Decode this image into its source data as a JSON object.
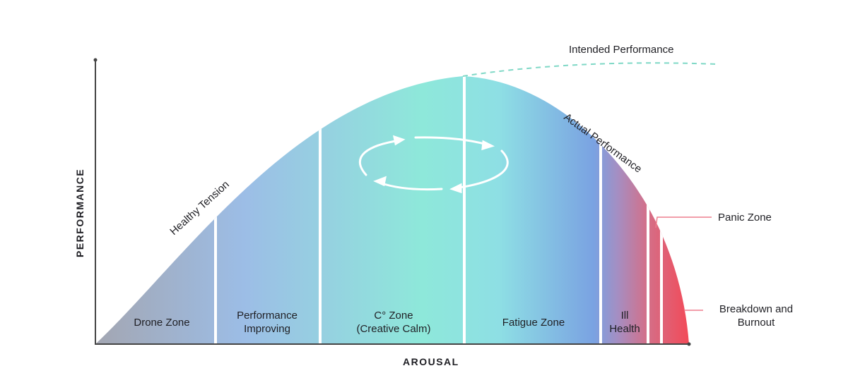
{
  "axes": {
    "x_label": "AROUSAL",
    "y_label": "PERFORMANCE"
  },
  "curves": {
    "intended": "Intended Performance",
    "actual": "Actual Performance",
    "healthy": "Healthy Tension"
  },
  "zones": [
    {
      "line1": "Drone Zone",
      "line2": ""
    },
    {
      "line1": "Performance",
      "line2": "Improving"
    },
    {
      "line1": "C° Zone",
      "line2": "(Creative Calm)"
    },
    {
      "line1": "Fatigue Zone",
      "line2": ""
    },
    {
      "line1": "Ill",
      "line2": "Health"
    }
  ],
  "callouts": {
    "panic": "Panic Zone",
    "burnout_1": "Breakdown and",
    "burnout_2": "Burnout"
  },
  "colors": {
    "gray": "#a3a6b2",
    "blue": "#9cbde6",
    "teal": "#8ee8da",
    "purple": "#a58ec2",
    "red": "#f24a58",
    "dash": "#7fd8c6",
    "callout": "#ee7f8e"
  }
}
